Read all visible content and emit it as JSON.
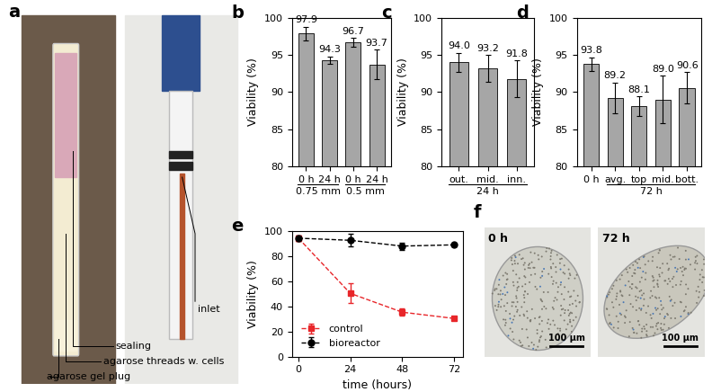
{
  "chart_data": [
    {
      "panel": "b",
      "type": "bar",
      "categories": [
        "0 h",
        "24 h",
        "0 h",
        "24 h"
      ],
      "values": [
        97.9,
        94.3,
        96.7,
        93.7
      ],
      "errors": [
        0.9,
        0.5,
        0.6,
        2.0
      ],
      "groups": [
        {
          "label": "0.75 mm",
          "start": 0,
          "size": 2
        },
        {
          "label": "0.5 mm",
          "start": 2,
          "size": 2
        }
      ],
      "y_label": "Viability (%)",
      "ylim": [
        80,
        100
      ],
      "yticks": [
        80,
        85,
        90,
        95,
        100
      ],
      "color": "#a6a6a6",
      "data_labels": true
    },
    {
      "panel": "c",
      "type": "bar",
      "categories": [
        "out.",
        "mid.",
        "inn."
      ],
      "values": [
        94.0,
        93.2,
        91.8
      ],
      "errors": [
        1.3,
        1.8,
        2.5
      ],
      "groups": [
        {
          "label": "24 h",
          "start": 0,
          "size": 3
        }
      ],
      "y_label": "Viability (%)",
      "ylim": [
        80,
        100
      ],
      "yticks": [
        80,
        85,
        90,
        95,
        100
      ],
      "color": "#a6a6a6",
      "data_labels": true
    },
    {
      "panel": "d",
      "type": "bar",
      "categories": [
        "0 h",
        "avg.",
        "top",
        "mid.",
        "bott."
      ],
      "values": [
        93.8,
        89.2,
        88.1,
        89.0,
        90.6
      ],
      "errors": [
        0.9,
        2.1,
        1.3,
        3.2,
        2.1
      ],
      "groups": [
        {
          "label": "72 h",
          "start": 1,
          "size": 4
        }
      ],
      "y_label": "Viability (%)",
      "ylim": [
        80,
        100
      ],
      "yticks": [
        80,
        85,
        90,
        95,
        100
      ],
      "color": "#a6a6a6",
      "data_labels": true
    },
    {
      "panel": "e",
      "type": "line",
      "x": [
        0,
        24,
        48,
        72
      ],
      "series": [
        {
          "name": "control",
          "color": "#e8262a",
          "marker": "square",
          "line_style": "dashed",
          "values": [
            94.5,
            50.5,
            35.5,
            30.5
          ],
          "errors": [
            2.0,
            8.0,
            3.0,
            1.0
          ]
        },
        {
          "name": "bioreactor",
          "color": "#000000",
          "marker": "circle",
          "line_style": "dashed",
          "values": [
            94.5,
            92.8,
            88.2,
            89.2
          ],
          "errors": [
            2.0,
            5.0,
            3.0,
            1.0
          ]
        }
      ],
      "x_label": "time (hours)",
      "y_label": "Viability (%)",
      "xlim": [
        -3,
        76
      ],
      "xticks": [
        0,
        24,
        48,
        72
      ],
      "ylim": [
        0,
        100
      ],
      "yticks": [
        0,
        20,
        40,
        60,
        80,
        100
      ],
      "legend": "lower left"
    }
  ],
  "photo_panels": {
    "a": {
      "panel": "a",
      "labels": [
        "sealing",
        "agarose threads w. cells",
        "agarose gel plug",
        "inlet"
      ]
    },
    "f": {
      "panel": "f",
      "images": [
        "0 h",
        "72 h"
      ],
      "scale_bar": "100 µm"
    }
  }
}
